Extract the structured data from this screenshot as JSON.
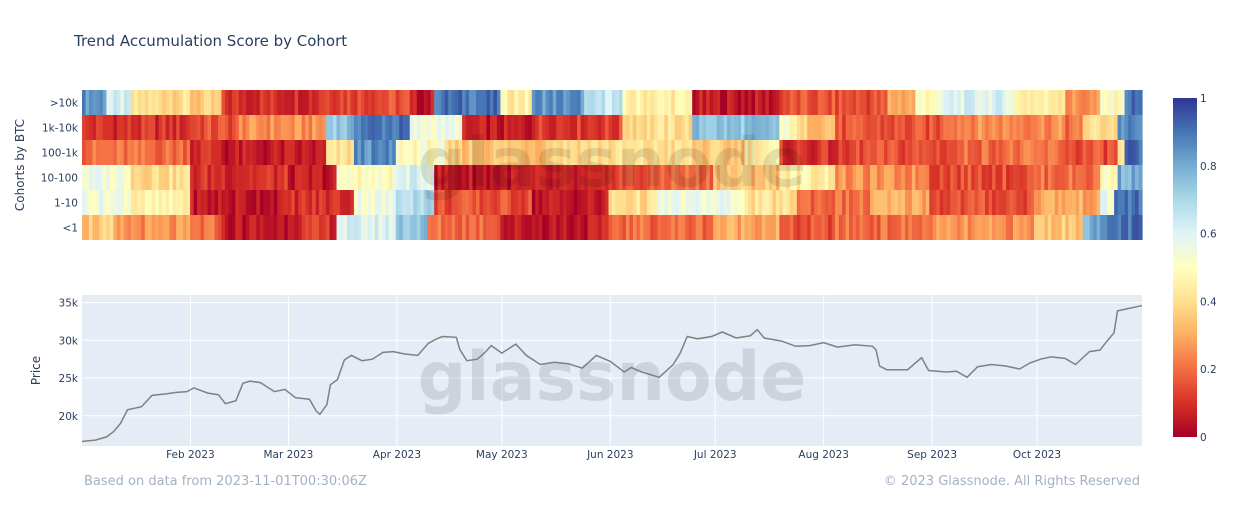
{
  "title": "Trend Accumulation Score by Cohort",
  "footer": {
    "source_note": "Based on data from 2023-11-01T00:30:06Z",
    "copyright": "© 2023 Glassnode. All Rights Reserved"
  },
  "watermark": "glassnode",
  "colors": {
    "colorscale": [
      "#a50026",
      "#d73027",
      "#f46d43",
      "#fdae61",
      "#fee090",
      "#ffffbf",
      "#e0f3f8",
      "#abd9e9",
      "#74add1",
      "#4575b4",
      "#313695"
    ],
    "price_line": "#808080",
    "plot_bg": "#e5ecf6"
  },
  "chart_data": [
    {
      "type": "heatmap",
      "ylabel": "Cohorts by BTC",
      "rows": [
        ">10k",
        "1k-10k",
        "100-1k",
        "10-100",
        "1-10",
        "<1"
      ],
      "colorbar": {
        "min": 0,
        "max": 1,
        "ticks": [
          0,
          0.2,
          0.4,
          0.6,
          0.8,
          1
        ]
      },
      "x_start": "2023-01-01",
      "x_end": "2023-10-31",
      "segments": {
        ">10k": [
          [
            "2023-01-01",
            0.85
          ],
          [
            "2023-01-08",
            0.6
          ],
          [
            "2023-01-15",
            0.4
          ],
          [
            "2023-02-01",
            0.35
          ],
          [
            "2023-02-10",
            0.1
          ],
          [
            "2023-03-10",
            0.15
          ],
          [
            "2023-04-05",
            0.05
          ],
          [
            "2023-04-12",
            0.9
          ],
          [
            "2023-05-01",
            0.45
          ],
          [
            "2023-05-10",
            0.85
          ],
          [
            "2023-05-25",
            0.65
          ],
          [
            "2023-06-05",
            0.45
          ],
          [
            "2023-06-25",
            0.05
          ],
          [
            "2023-07-20",
            0.15
          ],
          [
            "2023-08-20",
            0.3
          ],
          [
            "2023-08-28",
            0.5
          ],
          [
            "2023-09-05",
            0.6
          ],
          [
            "2023-09-25",
            0.45
          ],
          [
            "2023-10-10",
            0.25
          ],
          [
            "2023-10-20",
            0.5
          ],
          [
            "2023-10-27",
            0.9
          ]
        ],
        "1k-10k": [
          [
            "2023-01-01",
            0.1
          ],
          [
            "2023-02-01",
            0.15
          ],
          [
            "2023-02-15",
            0.25
          ],
          [
            "2023-03-12",
            0.75
          ],
          [
            "2023-03-20",
            0.9
          ],
          [
            "2023-04-05",
            0.55
          ],
          [
            "2023-04-20",
            0.05
          ],
          [
            "2023-05-10",
            0.12
          ],
          [
            "2023-06-05",
            0.4
          ],
          [
            "2023-06-25",
            0.75
          ],
          [
            "2023-07-20",
            0.5
          ],
          [
            "2023-07-25",
            0.35
          ],
          [
            "2023-08-05",
            0.15
          ],
          [
            "2023-09-05",
            0.25
          ],
          [
            "2023-10-10",
            0.2
          ],
          [
            "2023-10-15",
            0.4
          ],
          [
            "2023-10-25",
            0.85
          ]
        ],
        "100-1k": [
          [
            "2023-01-01",
            0.2
          ],
          [
            "2023-02-01",
            0.1
          ],
          [
            "2023-02-10",
            0.05
          ],
          [
            "2023-03-12",
            0.4
          ],
          [
            "2023-03-20",
            0.85
          ],
          [
            "2023-04-01",
            0.5
          ],
          [
            "2023-04-15",
            0.35
          ],
          [
            "2023-05-15",
            0.4
          ],
          [
            "2023-06-25",
            0.35
          ],
          [
            "2023-07-10",
            0.45
          ],
          [
            "2023-07-20",
            0.1
          ],
          [
            "2023-08-10",
            0.15
          ],
          [
            "2023-09-10",
            0.2
          ],
          [
            "2023-10-10",
            0.15
          ],
          [
            "2023-10-25",
            0.4
          ],
          [
            "2023-10-27",
            0.9
          ]
        ],
        "10-100": [
          [
            "2023-01-01",
            0.55
          ],
          [
            "2023-01-15",
            0.4
          ],
          [
            "2023-02-01",
            0.1
          ],
          [
            "2023-03-01",
            0.05
          ],
          [
            "2023-03-15",
            0.5
          ],
          [
            "2023-04-01",
            0.6
          ],
          [
            "2023-04-12",
            0.05
          ],
          [
            "2023-05-15",
            0.05
          ],
          [
            "2023-06-01",
            0.15
          ],
          [
            "2023-06-15",
            0.2
          ],
          [
            "2023-07-01",
            0.35
          ],
          [
            "2023-07-20",
            0.45
          ],
          [
            "2023-08-05",
            0.25
          ],
          [
            "2023-09-01",
            0.15
          ],
          [
            "2023-10-01",
            0.2
          ],
          [
            "2023-10-20",
            0.5
          ],
          [
            "2023-10-25",
            0.8
          ]
        ],
        "1-10": [
          [
            "2023-01-01",
            0.55
          ],
          [
            "2023-01-15",
            0.45
          ],
          [
            "2023-02-01",
            0.05
          ],
          [
            "2023-03-01",
            0.1
          ],
          [
            "2023-03-20",
            0.55
          ],
          [
            "2023-04-01",
            0.7
          ],
          [
            "2023-04-12",
            0.15
          ],
          [
            "2023-05-10",
            0.05
          ],
          [
            "2023-06-01",
            0.4
          ],
          [
            "2023-06-15",
            0.55
          ],
          [
            "2023-07-10",
            0.4
          ],
          [
            "2023-07-25",
            0.2
          ],
          [
            "2023-08-15",
            0.3
          ],
          [
            "2023-09-01",
            0.15
          ],
          [
            "2023-10-01",
            0.3
          ],
          [
            "2023-10-20",
            0.55
          ],
          [
            "2023-10-24",
            0.9
          ]
        ],
        "<1": [
          [
            "2023-01-01",
            0.35
          ],
          [
            "2023-01-10",
            0.25
          ],
          [
            "2023-02-01",
            0.2
          ],
          [
            "2023-02-10",
            0.05
          ],
          [
            "2023-03-01",
            0.1
          ],
          [
            "2023-03-15",
            0.6
          ],
          [
            "2023-04-01",
            0.75
          ],
          [
            "2023-04-10",
            0.2
          ],
          [
            "2023-05-01",
            0.05
          ],
          [
            "2023-06-01",
            0.2
          ],
          [
            "2023-07-01",
            0.3
          ],
          [
            "2023-07-20",
            0.15
          ],
          [
            "2023-08-05",
            0.2
          ],
          [
            "2023-09-01",
            0.25
          ],
          [
            "2023-10-01",
            0.35
          ],
          [
            "2023-10-15",
            0.8
          ],
          [
            "2023-10-22",
            0.9
          ]
        ]
      }
    },
    {
      "type": "line",
      "ylabel": "Price",
      "ylim": [
        16000,
        36000
      ],
      "ytick_labels": [
        "20k",
        "25k",
        "30k",
        "35k"
      ],
      "x_tick_labels": [
        "Feb 2023",
        "Mar 2023",
        "Apr 2023",
        "May 2023",
        "Jun 2023",
        "Jul 2023",
        "Aug 2023",
        "Sep 2023",
        "Oct 2023"
      ],
      "series": [
        {
          "points": [
            [
              "2023-01-01",
              16600
            ],
            [
              "2023-01-05",
              16800
            ],
            [
              "2023-01-08",
              17200
            ],
            [
              "2023-01-10",
              17900
            ],
            [
              "2023-01-12",
              19000
            ],
            [
              "2023-01-14",
              20800
            ],
            [
              "2023-01-18",
              21200
            ],
            [
              "2023-01-21",
              22700
            ],
            [
              "2023-01-25",
              22900
            ],
            [
              "2023-01-28",
              23100
            ],
            [
              "2023-01-31",
              23200
            ],
            [
              "2023-02-02",
              23700
            ],
            [
              "2023-02-06",
              23000
            ],
            [
              "2023-02-09",
              22800
            ],
            [
              "2023-02-11",
              21600
            ],
            [
              "2023-02-14",
              22000
            ],
            [
              "2023-02-16",
              24300
            ],
            [
              "2023-02-18",
              24600
            ],
            [
              "2023-02-21",
              24400
            ],
            [
              "2023-02-25",
              23200
            ],
            [
              "2023-02-28",
              23500
            ],
            [
              "2023-03-03",
              22400
            ],
            [
              "2023-03-07",
              22200
            ],
            [
              "2023-03-09",
              20600
            ],
            [
              "2023-03-10",
              20200
            ],
            [
              "2023-03-12",
              21500
            ],
            [
              "2023-03-13",
              24100
            ],
            [
              "2023-03-15",
              24800
            ],
            [
              "2023-03-17",
              27400
            ],
            [
              "2023-03-19",
              28000
            ],
            [
              "2023-03-22",
              27300
            ],
            [
              "2023-03-25",
              27500
            ],
            [
              "2023-03-28",
              28400
            ],
            [
              "2023-03-31",
              28500
            ],
            [
              "2023-04-03",
              28200
            ],
            [
              "2023-04-07",
              28000
            ],
            [
              "2023-04-10",
              29600
            ],
            [
              "2023-04-12",
              30100
            ],
            [
              "2023-04-14",
              30500
            ],
            [
              "2023-04-18",
              30400
            ],
            [
              "2023-04-19",
              28800
            ],
            [
              "2023-04-21",
              27300
            ],
            [
              "2023-04-24",
              27500
            ],
            [
              "2023-04-26",
              28300
            ],
            [
              "2023-04-28",
              29300
            ],
            [
              "2023-05-01",
              28300
            ],
            [
              "2023-05-05",
              29500
            ],
            [
              "2023-05-08",
              28000
            ],
            [
              "2023-05-12",
              26800
            ],
            [
              "2023-05-16",
              27100
            ],
            [
              "2023-05-20",
              26900
            ],
            [
              "2023-05-24",
              26300
            ],
            [
              "2023-05-28",
              28000
            ],
            [
              "2023-06-01",
              27200
            ],
            [
              "2023-06-05",
              25800
            ],
            [
              "2023-06-07",
              26400
            ],
            [
              "2023-06-10",
              25800
            ],
            [
              "2023-06-15",
              25100
            ],
            [
              "2023-06-19",
              26800
            ],
            [
              "2023-06-21",
              28300
            ],
            [
              "2023-06-23",
              30500
            ],
            [
              "2023-06-26",
              30200
            ],
            [
              "2023-06-30",
              30500
            ],
            [
              "2023-07-03",
              31100
            ],
            [
              "2023-07-07",
              30300
            ],
            [
              "2023-07-11",
              30600
            ],
            [
              "2023-07-13",
              31400
            ],
            [
              "2023-07-15",
              30300
            ],
            [
              "2023-07-20",
              29900
            ],
            [
              "2023-07-24",
              29200
            ],
            [
              "2023-07-28",
              29300
            ],
            [
              "2023-08-01",
              29700
            ],
            [
              "2023-08-05",
              29100
            ],
            [
              "2023-08-10",
              29400
            ],
            [
              "2023-08-15",
              29200
            ],
            [
              "2023-08-16",
              28700
            ],
            [
              "2023-08-17",
              26600
            ],
            [
              "2023-08-19",
              26100
            ],
            [
              "2023-08-25",
              26100
            ],
            [
              "2023-08-29",
              27700
            ],
            [
              "2023-08-31",
              26000
            ],
            [
              "2023-09-05",
              25800
            ],
            [
              "2023-09-08",
              25900
            ],
            [
              "2023-09-11",
              25100
            ],
            [
              "2023-09-14",
              26500
            ],
            [
              "2023-09-18",
              26800
            ],
            [
              "2023-09-22",
              26600
            ],
            [
              "2023-09-26",
              26200
            ],
            [
              "2023-09-29",
              27000
            ],
            [
              "2023-10-02",
              27500
            ],
            [
              "2023-10-05",
              27800
            ],
            [
              "2023-10-09",
              27600
            ],
            [
              "2023-10-12",
              26800
            ],
            [
              "2023-10-16",
              28500
            ],
            [
              "2023-10-19",
              28700
            ],
            [
              "2023-10-21",
              29900
            ],
            [
              "2023-10-23",
              31000
            ],
            [
              "2023-10-24",
              33900
            ],
            [
              "2023-10-27",
              34200
            ],
            [
              "2023-10-30",
              34500
            ],
            [
              "2023-10-31",
              34600
            ]
          ]
        }
      ]
    }
  ]
}
